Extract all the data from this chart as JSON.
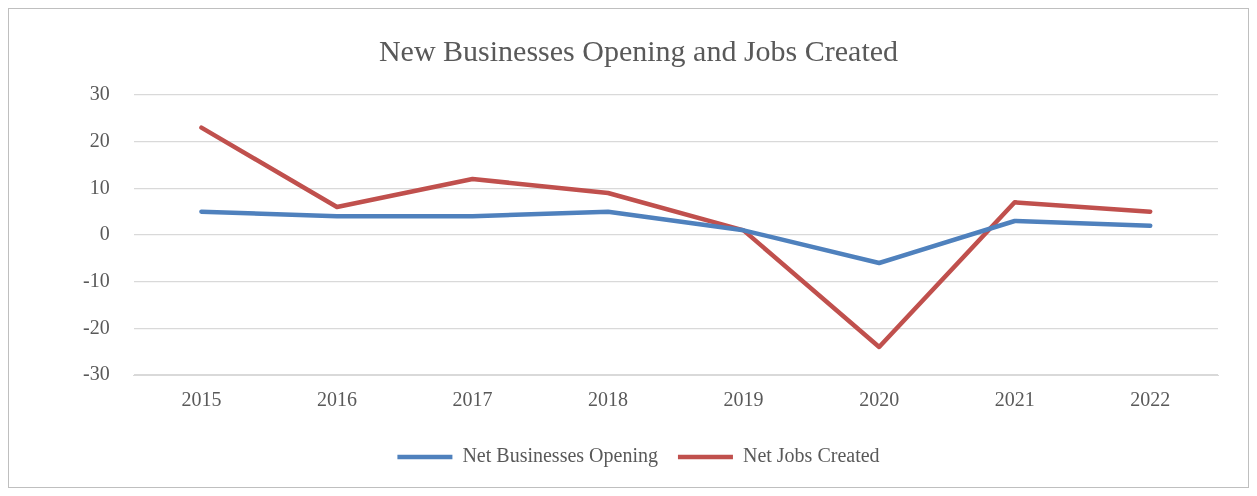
{
  "chart_data": {
    "type": "line",
    "title": "New Businesses Opening and Jobs Created",
    "categories": [
      "2015",
      "2016",
      "2017",
      "2018",
      "2019",
      "2020",
      "2021",
      "2022"
    ],
    "series": [
      {
        "name": "Net Businesses Opening",
        "color": "#4f81bd",
        "values": [
          5,
          4,
          4,
          5,
          1,
          -6,
          3,
          2
        ]
      },
      {
        "name": "Net Jobs Created",
        "color": "#c0504d",
        "values": [
          23,
          6,
          12,
          9,
          1,
          -24,
          7,
          5
        ]
      }
    ],
    "ylim": [
      -30,
      30
    ],
    "yticks": [
      -30,
      -20,
      -10,
      0,
      10,
      20,
      30
    ],
    "grid": "y",
    "legend": "bottom",
    "marker": "none",
    "line_style": "solid"
  }
}
